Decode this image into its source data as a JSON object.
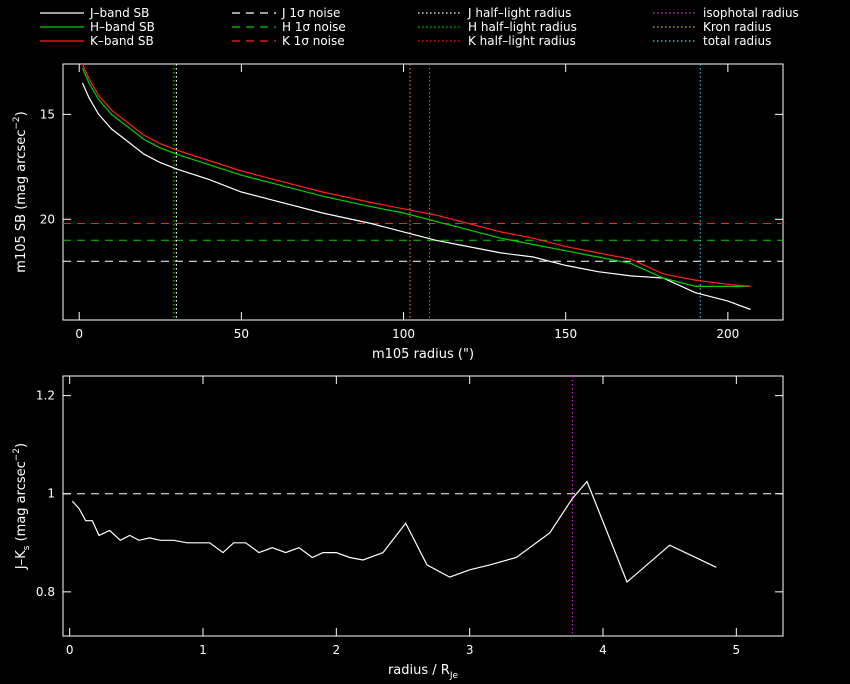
{
  "colors": {
    "background": "#000000",
    "axis": "#ffffff",
    "j_band": "#ffffff",
    "h_band": "#00d000",
    "k_band": "#ff2020",
    "isophotal": "#ff20ff",
    "kron": "#ffa030",
    "total": "#40e0e0"
  },
  "legend": [
    {
      "text": "J–band SB",
      "style": "solid",
      "color": "#ffffff"
    },
    {
      "text": "J 1σ noise",
      "style": "dashed",
      "color": "#ffffff"
    },
    {
      "text": "J half–light radius",
      "style": "dotted",
      "color": "#ffffff"
    },
    {
      "text": "isophotal radius",
      "style": "dotted",
      "color": "#ff20ff"
    },
    {
      "text": "H–band SB",
      "style": "solid",
      "color": "#00d000"
    },
    {
      "text": "H 1σ noise",
      "style": "dashed",
      "color": "#00d000"
    },
    {
      "text": "H half–light radius",
      "style": "dotted",
      "color": "#00d000"
    },
    {
      "text": "Kron radius",
      "style": "dotted",
      "color": "#ffa030"
    },
    {
      "text": "K–band SB",
      "style": "solid",
      "color": "#ff2020"
    },
    {
      "text": "K 1σ noise",
      "style": "dashed",
      "color": "#ff2020"
    },
    {
      "text": "K half–light radius",
      "style": "dotted",
      "color": "#ff2020"
    },
    {
      "text": "total radius",
      "style": "dotted",
      "color": "#40e0e0"
    }
  ],
  "chart_data": [
    {
      "type": "line",
      "xlabel": "m105 radius (\")",
      "ylabel_main": "m105 SB (mag arcsec",
      "ylabel_sup": "−2",
      "ylabel_end": ")",
      "xlim": [
        -5,
        217
      ],
      "ylim": [
        24.8,
        12.6
      ],
      "yscale_inverted": true,
      "xticks": [
        0,
        50,
        100,
        150,
        200
      ],
      "xtick_labels": [
        "0",
        "50",
        "100",
        "150",
        "200"
      ],
      "yticks": [
        15,
        20
      ],
      "ytick_labels": [
        "15",
        "20"
      ],
      "series": [
        {
          "name": "J–band SB",
          "color": "#ffffff",
          "x": [
            1,
            3,
            6,
            10,
            15,
            20,
            25,
            30,
            40,
            50,
            60,
            75,
            90,
            100,
            110,
            120,
            130,
            140,
            150,
            160,
            170,
            180,
            190,
            200,
            207
          ],
          "y": [
            13.5,
            14.2,
            15.0,
            15.7,
            16.3,
            16.9,
            17.3,
            17.6,
            18.1,
            18.7,
            19.1,
            19.7,
            20.2,
            20.6,
            21.0,
            21.3,
            21.6,
            21.8,
            22.2,
            22.5,
            22.7,
            22.8,
            23.5,
            23.9,
            24.3
          ]
        },
        {
          "name": "H–band SB",
          "color": "#00d000",
          "x": [
            1,
            3,
            6,
            10,
            15,
            20,
            25,
            30,
            40,
            50,
            60,
            75,
            90,
            100,
            110,
            120,
            130,
            140,
            150,
            160,
            170,
            180,
            190,
            200,
            207
          ],
          "y": [
            12.8,
            13.5,
            14.3,
            15.0,
            15.6,
            16.2,
            16.6,
            16.9,
            17.4,
            17.9,
            18.3,
            18.9,
            19.4,
            19.7,
            20.1,
            20.5,
            20.9,
            21.2,
            21.5,
            21.8,
            22.1,
            22.8,
            23.2,
            23.2,
            23.2
          ]
        },
        {
          "name": "K–band SB",
          "color": "#ff2020",
          "x": [
            1,
            3,
            6,
            10,
            15,
            20,
            25,
            30,
            40,
            50,
            60,
            75,
            90,
            100,
            110,
            120,
            130,
            140,
            150,
            160,
            170,
            180,
            190,
            200,
            207
          ],
          "y": [
            12.6,
            13.3,
            14.1,
            14.8,
            15.4,
            16.0,
            16.4,
            16.7,
            17.2,
            17.7,
            18.1,
            18.7,
            19.2,
            19.5,
            19.8,
            20.2,
            20.6,
            20.9,
            21.3,
            21.6,
            21.9,
            22.6,
            22.9,
            23.1,
            23.2
          ]
        }
      ],
      "hlines": [
        {
          "name": "J 1σ noise",
          "y": 22.0,
          "color": "#ffffff"
        },
        {
          "name": "H 1σ noise",
          "y": 21.0,
          "color": "#00d000"
        },
        {
          "name": "K 1σ noise",
          "y": 20.2,
          "color": "#ff2020"
        }
      ],
      "vlines": [
        {
          "name": "J half–light radius",
          "x": 30.0,
          "color": "#ffffff"
        },
        {
          "name": "H half–light radius",
          "x": 29.5,
          "color": "#00d000"
        },
        {
          "name": "K half–light radius",
          "x": 29.0,
          "color": "#ff2020"
        },
        {
          "name": "Kron radius",
          "x": 102.0,
          "color": "#ffa030"
        },
        {
          "name": "isophotal radius",
          "x": 108.0,
          "color": "#ff20ff"
        },
        {
          "name": "total radius",
          "x": 191.5,
          "color": "#40e0e0"
        }
      ]
    },
    {
      "type": "line",
      "xlabel_main": "radius / R",
      "xlabel_sub": "Je",
      "ylabel_main": "J–K",
      "ylabel_sub": "s",
      "ylabel_rest": " (mag arcsec",
      "ylabel_sup": "−2",
      "ylabel_end": ")",
      "xlim": [
        -0.05,
        5.35
      ],
      "ylim": [
        0.71,
        1.24
      ],
      "xticks": [
        0,
        1,
        2,
        3,
        4,
        5
      ],
      "xtick_labels": [
        "0",
        "1",
        "2",
        "3",
        "4",
        "5"
      ],
      "yticks": [
        0.8,
        1.0,
        1.2
      ],
      "ytick_labels": [
        "0.8",
        "1",
        "1.2"
      ],
      "series": [
        {
          "name": "J–Kₛ",
          "color": "#ffffff",
          "x": [
            0.02,
            0.07,
            0.12,
            0.17,
            0.22,
            0.3,
            0.38,
            0.45,
            0.52,
            0.6,
            0.68,
            0.78,
            0.88,
            0.97,
            1.05,
            1.15,
            1.23,
            1.32,
            1.42,
            1.52,
            1.62,
            1.72,
            1.82,
            1.9,
            2.0,
            2.1,
            2.2,
            2.35,
            2.52,
            2.68,
            2.85,
            3.0,
            3.15,
            3.35,
            3.6,
            3.77,
            3.88,
            4.18,
            4.5,
            4.85
          ],
          "y": [
            0.985,
            0.97,
            0.945,
            0.945,
            0.915,
            0.925,
            0.905,
            0.915,
            0.905,
            0.91,
            0.905,
            0.905,
            0.9,
            0.9,
            0.9,
            0.88,
            0.9,
            0.9,
            0.88,
            0.89,
            0.88,
            0.89,
            0.87,
            0.88,
            0.88,
            0.87,
            0.865,
            0.88,
            0.94,
            0.855,
            0.83,
            0.845,
            0.855,
            0.87,
            0.92,
            0.99,
            1.025,
            0.82,
            0.895,
            0.85
          ]
        }
      ],
      "hlines": [
        {
          "name": "reference",
          "y": 1.0,
          "color": "#ffffff"
        }
      ],
      "vlines": [
        {
          "name": "isophotal radius",
          "x": 3.77,
          "color": "#ff20ff"
        }
      ]
    }
  ]
}
